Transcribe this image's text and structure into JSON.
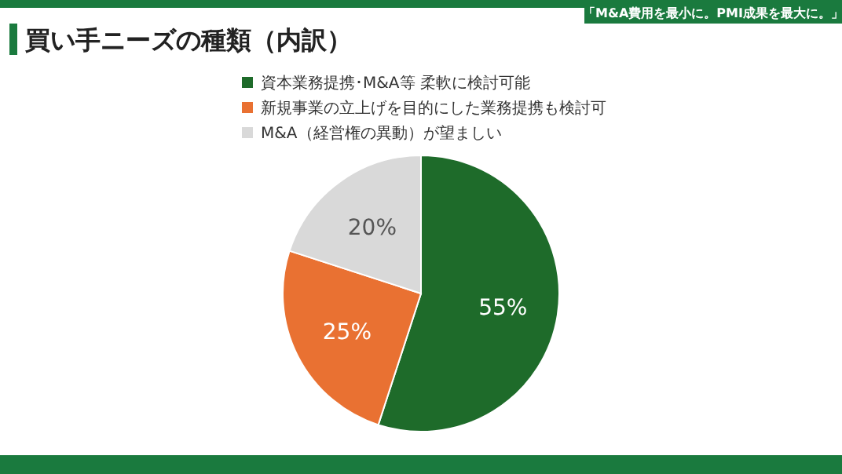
{
  "chart_data": {
    "type": "pie",
    "title": "買い手ニーズの種類（内訳）",
    "categories": [
      "資本業務提携･M&A等 柔軟に検討可能",
      "新規事業の立上げを目的にした業務提携も検討可",
      "M&A（経営権の異動）が望ましい"
    ],
    "values": [
      55,
      25,
      20
    ],
    "colors": [
      "#1e6b2a",
      "#e97132",
      "#d9d9d9"
    ],
    "value_labels": [
      "55%",
      "25%",
      "20%"
    ],
    "legend": "top left",
    "annotations": [
      "「M&A費用を最小に。PMI成果を最大に。」"
    ]
  }
}
